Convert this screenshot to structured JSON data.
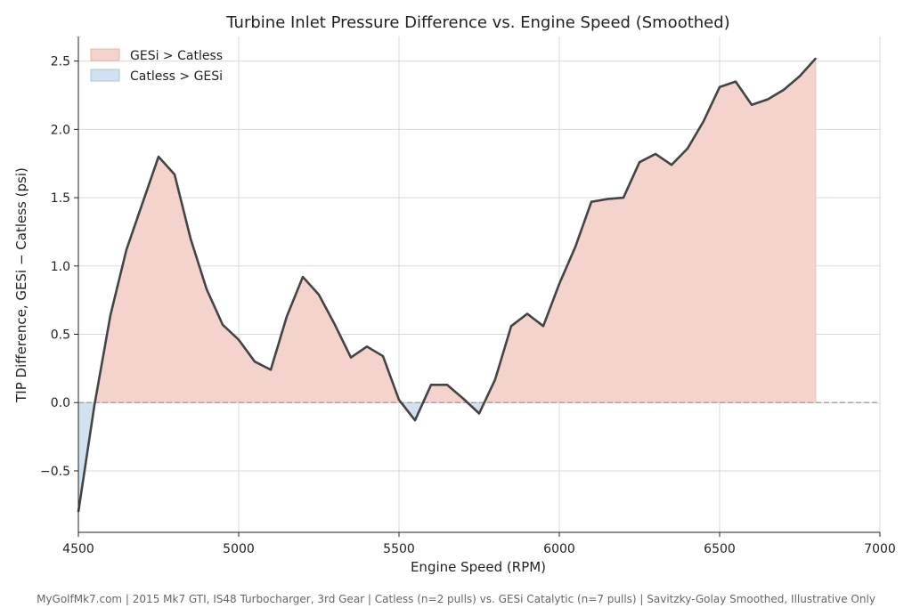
{
  "chart_data": {
    "type": "area",
    "title": "Turbine Inlet Pressure Difference vs. Engine Speed (Smoothed)",
    "xlabel": "Engine Speed (RPM)",
    "ylabel": "TIP Difference, GESi − Catless (psi)",
    "xlim": [
      4500,
      7000
    ],
    "ylim": [
      -0.95,
      2.68
    ],
    "xticks": [
      4500,
      5000,
      5500,
      6000,
      6500,
      7000
    ],
    "yticks": [
      -0.5,
      0.0,
      0.5,
      1.0,
      1.5,
      2.0,
      2.5
    ],
    "ytick_labels": [
      "−0.5",
      "0.0",
      "0.5",
      "1.0",
      "1.5",
      "2.0",
      "2.5"
    ],
    "grid": true,
    "zero_line": true,
    "legend": {
      "placement": "top-left",
      "entries": [
        {
          "label": "GESi > Catless",
          "color": "#f4d3cd",
          "edge": "#e9b3a8"
        },
        {
          "label": "Catless > GESi",
          "color": "#d2e1ef",
          "edge": "#aac6e0"
        }
      ]
    },
    "line_color": "#444444",
    "x": [
      4500,
      4550,
      4600,
      4650,
      4700,
      4750,
      4800,
      4850,
      4900,
      4950,
      5000,
      5050,
      5100,
      5150,
      5200,
      5250,
      5300,
      5350,
      5400,
      5450,
      5500,
      5550,
      5600,
      5650,
      5700,
      5750,
      5800,
      5850,
      5900,
      5950,
      6000,
      6050,
      6100,
      6150,
      6200,
      6250,
      6300,
      6350,
      6400,
      6450,
      6500,
      6550,
      6600,
      6650,
      6700,
      6750,
      6800
    ],
    "y": [
      -0.8,
      -0.02,
      0.64,
      1.12,
      1.46,
      1.8,
      1.67,
      1.2,
      0.83,
      0.57,
      0.46,
      0.3,
      0.24,
      0.63,
      0.92,
      0.79,
      0.57,
      0.33,
      0.41,
      0.34,
      0.02,
      -0.13,
      0.13,
      0.13,
      0.03,
      -0.08,
      0.17,
      0.56,
      0.65,
      0.56,
      0.87,
      1.14,
      1.47,
      1.49,
      1.5,
      1.76,
      1.82,
      1.74,
      1.86,
      2.06,
      2.31,
      2.35,
      2.18,
      2.22,
      2.29,
      2.39,
      2.52
    ]
  },
  "footer": "MyGolfMk7.com | 2015 Mk7 GTI, IS48 Turbocharger, 3rd Gear | Catless (n=2 pulls) vs. GESi Catalytic (n=7 pulls) | Savitzky-Golay Smoothed, Illustrative Only"
}
